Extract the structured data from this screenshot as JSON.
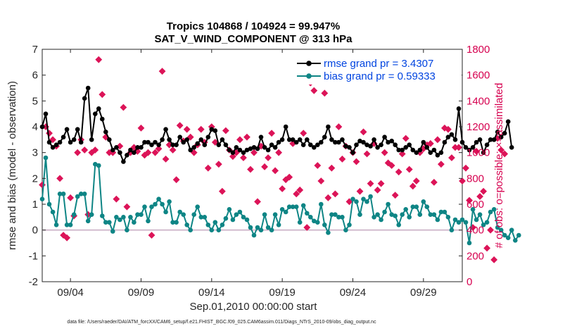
{
  "colors": {
    "rmse": "#000000",
    "bias": "#0e8585",
    "obs": "#dc1458",
    "legend_text": "#0044e0",
    "zero_line": "#c6a9c0",
    "right_axis": "#d6004f"
  },
  "chart_data": {
    "type": "line",
    "title_line1": "Tropics 104868 / 104924 = 99.947%",
    "title_line2": "SAT_V_WIND_COMPONENT @ 313 hPa",
    "xlabel": "Sep.01,2010 00:00:00 start",
    "ylabel": "rmse and bias (model - observation)",
    "ylabel_right": "# of obs: o=possible; ×=assimilated",
    "footnote": "data file: /Users/raeder/DAI/ATM_forcXX/CAM6_setup/f.e21.FHIST_BGC.f09_025.CAM6assim.011/Diags_NTrS_2010-09/obs_diag_output.nc",
    "x_unit": "days since Sep.01,2010 00:00",
    "xlim": [
      1.0,
      30.75
    ],
    "x_ticks": [
      3,
      8,
      13,
      18,
      23,
      28
    ],
    "x_tick_labels": [
      "09/04",
      "09/09",
      "09/14",
      "09/19",
      "09/24",
      "09/29"
    ],
    "ylim": [
      -2,
      7
    ],
    "y_ticks": [
      -2,
      -1,
      0,
      1,
      2,
      3,
      4,
      5,
      6,
      7
    ],
    "y_tick_labels": [
      "-2",
      "-1",
      "0",
      "1",
      "2",
      "3",
      "4",
      "5",
      "6",
      "7"
    ],
    "ylim_right": [
      0,
      1800
    ],
    "y_ticks_right": [
      0,
      200,
      400,
      600,
      800,
      1000,
      1200,
      1400,
      1600,
      1800
    ],
    "y_tick_labels_right": [
      "0",
      "200",
      "400",
      "600",
      "800",
      "1000",
      "1200",
      "1400",
      "1600",
      "1800"
    ],
    "legend_position": "top-right",
    "series": [
      {
        "name": "rmse grand pr = 3.4307",
        "axis": "left",
        "style": "line-dot",
        "x_start": 1.0,
        "x_step": 0.25,
        "values": [
          4.0,
          4.5,
          3.4,
          3.2,
          3.3,
          3.4,
          3.6,
          3.9,
          3.4,
          3.5,
          3.9,
          3.4,
          5.1,
          5.5,
          3.5,
          4.5,
          4.7,
          4.3,
          3.8,
          3.5,
          3.1,
          3.2,
          3.0,
          2.65,
          2.9,
          3.1,
          3.0,
          3.2,
          3.2,
          3.4,
          3.4,
          3.3,
          3.4,
          3.3,
          3.5,
          3.9,
          3.5,
          3.3,
          3.3,
          3.6,
          3.4,
          3.5,
          3.1,
          3.2,
          3.35,
          3.5,
          3.3,
          3.6,
          3.9,
          3.85,
          3.3,
          3.5,
          3.3,
          3.1,
          3.0,
          3.2,
          3.1,
          3.0,
          3.1,
          3.15,
          3.2,
          3.15,
          3.6,
          3.2,
          3.1,
          3.3,
          3.2,
          3.4,
          3.5,
          4.0,
          3.5,
          3.5,
          3.4,
          3.5,
          3.3,
          3.5,
          3.3,
          3.2,
          3.3,
          3.4,
          3.6,
          4.0,
          3.5,
          3.4,
          3.4,
          3.5,
          3.25,
          3.2,
          3.0,
          3.3,
          3.45,
          3.4,
          3.3,
          3.25,
          3.5,
          3.2,
          3.3,
          3.6,
          3.4,
          3.45,
          3.3,
          3.1,
          3.1,
          3.2,
          3.3,
          3.1,
          3.0,
          3.1,
          3.4,
          3.2,
          3.0,
          3.1,
          2.9,
          3.0,
          3.4,
          3.6,
          3.7,
          3.5,
          4.7,
          3.4,
          3.2,
          3.1,
          3.2,
          3.4,
          3.5,
          3.0,
          3.3,
          3.5,
          3.5,
          3.8,
          3.6,
          3.75,
          4.2,
          3.2
        ],
        "interpolation": "linear"
      },
      {
        "name": "bias grand pr = 0.59333",
        "axis": "left",
        "style": "line-dot",
        "x_start": 1.0,
        "x_step": 0.25,
        "values": [
          1.2,
          2.8,
          1.0,
          0.7,
          0.2,
          1.4,
          1.4,
          0.2,
          0.2,
          0.6,
          1.3,
          1.4,
          1.4,
          0.35,
          0.6,
          2.55,
          2.5,
          0.55,
          0.3,
          0.3,
          -0.05,
          0.5,
          0.4,
          0.5,
          0.0,
          0.5,
          0.3,
          0.6,
          0.6,
          0.9,
          0.35,
          0.9,
          1.0,
          1.2,
          1.0,
          0.7,
          1.1,
          0.3,
          0.3,
          0.7,
          0.6,
          0.2,
          0.0,
          0.6,
          0.9,
          0.5,
          0.5,
          0.2,
          0.0,
          0.3,
          0.0,
          0.2,
          0.45,
          0.8,
          0.4,
          0.6,
          0.7,
          0.5,
          0.4,
          0.1,
          -0.2,
          0.1,
          0.0,
          0.6,
          0.1,
          0.0,
          0.6,
          0.2,
          0.8,
          0.7,
          0.9,
          0.9,
          0.9,
          0.3,
          0.95,
          0.65,
          0.5,
          0.35,
          0.3,
          1.0,
          0.2,
          -0.1,
          0.6,
          0.6,
          0.5,
          0.5,
          0.0,
          0.2,
          1.2,
          1.1,
          0.6,
          1.2,
          1.1,
          1.3,
          0.5,
          0.6,
          0.4,
          0.7,
          1.0,
          0.6,
          0.55,
          0.2,
          0.6,
          0.8,
          0.5,
          0.9,
          0.9,
          0.6,
          1.1,
          0.9,
          0.6,
          0.6,
          0.4,
          0.7,
          0.7,
          0.5,
          0.0,
          0.4,
          0.3,
          0.4,
          0.3,
          -0.5,
          0.8,
          0.4,
          0.6,
          0.2,
          0.3,
          0.7,
          0.8,
          0.1,
          0.0,
          -0.2,
          -0.3,
          0.0,
          -0.4,
          -0.2
        ],
        "interpolation": "linear"
      },
      {
        "name": "# of obs (possible/assimilated)",
        "axis": "right",
        "style": "markers",
        "x_start": 1.0,
        "x_step": 0.25,
        "values": [
          750,
          1200,
          1150,
          1100,
          1050,
          800,
          360,
          340,
          650,
          510,
          1000,
          1100,
          1020,
          520,
          1000,
          1020,
          1720,
          1450,
          1120,
          1000,
          1000,
          640,
          1050,
          1350,
          580,
          1000,
          1040,
          1010,
          1190,
          980,
          1000,
          360,
          1000,
          1030,
          1630,
          950,
          1060,
          1020,
          790,
          1210,
          1090,
          1180,
          1120,
          1000,
          1060,
          1180,
          1080,
          880,
          1200,
          1080,
          910,
          700,
          1170,
          1020,
          970,
          1000,
          1100,
          960,
          1120,
          870,
          1000,
          620,
          1050,
          890,
          960,
          1150,
          860,
          1000,
          720,
          790,
          810,
          1070,
          680,
          710,
          1150,
          420,
          1540,
          1480,
          900,
          780,
          1460,
          650,
          880,
          680,
          1200,
          950,
          1050,
          620,
          1000,
          930,
          700,
          1160,
          990,
          760,
          1070,
          710,
          760,
          1000,
          920,
          900,
          670,
          850,
          990,
          1110,
          870,
          740,
          780,
          1000,
          1030,
          1060,
          1070,
          770,
          1100,
          910,
          1190,
          1180,
          960,
          1040,
          1040,
          780,
          880,
          630,
          420,
          1010,
          660,
          700,
          260,
          400,
          170,
          1110,
          1020,
          990
        ]
      }
    ]
  }
}
